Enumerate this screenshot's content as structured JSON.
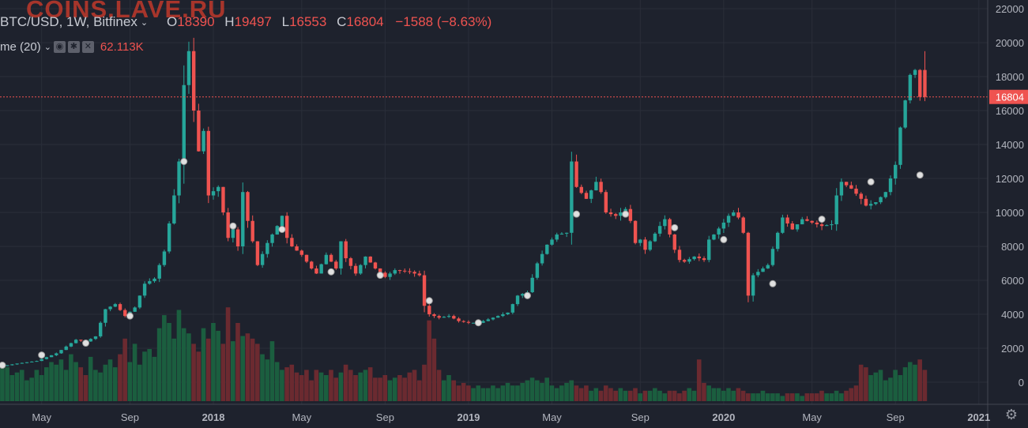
{
  "watermark": "COINS.LAVE.RU",
  "legend": {
    "symbol": "BTC/USD, 1W, Bitfinex",
    "o_label": "O",
    "o_value": "18390",
    "h_label": "H",
    "h_value": "19497",
    "l_label": "L",
    "l_value": "16553",
    "c_label": "C",
    "c_value": "16804",
    "change": "−1588 (−8.63%)"
  },
  "volume_legend": {
    "label": "me (20)",
    "value": "62.113K"
  },
  "colors": {
    "bg": "#1e222d",
    "up": "#26a69a",
    "down": "#ef5350",
    "grid": "#2a2e39",
    "text": "#b2b5be",
    "up_vol": "#1b5e3f",
    "down_vol": "#6b2a30"
  },
  "chart_data": {
    "type": "candlestick",
    "ylim": [
      -2000,
      22000
    ],
    "y_ticks": [
      "22000",
      "20000",
      "18000",
      "16000",
      "14000",
      "12000",
      "10000",
      "8000",
      "6000",
      "4000",
      "2000",
      "0"
    ],
    "x_ticks": [
      "May",
      "Sep",
      "2018",
      "May",
      "Sep",
      "2019",
      "May",
      "Sep",
      "2020",
      "May",
      "Sep",
      "2021"
    ],
    "last_price": "16804",
    "ma_points": [
      [
        0,
        1000
      ],
      [
        8,
        1600
      ],
      [
        17,
        2300
      ],
      [
        26,
        3900
      ],
      [
        37,
        13000
      ],
      [
        47,
        9200
      ],
      [
        57,
        9000
      ],
      [
        67,
        6500
      ],
      [
        77,
        6300
      ],
      [
        87,
        4800
      ],
      [
        97,
        3500
      ],
      [
        107,
        5100
      ],
      [
        117,
        9900
      ],
      [
        127,
        9900
      ],
      [
        137,
        9100
      ],
      [
        147,
        8400
      ],
      [
        157,
        5800
      ],
      [
        167,
        9600
      ],
      [
        177,
        11800
      ],
      [
        187,
        12200
      ]
    ],
    "price_path": [
      [
        0,
        900
      ],
      [
        4,
        1100
      ],
      [
        8,
        1250
      ],
      [
        12,
        1700
      ],
      [
        16,
        2500
      ],
      [
        18,
        2400
      ],
      [
        20,
        2700
      ],
      [
        22,
        4300
      ],
      [
        24,
        4600
      ],
      [
        26,
        3900
      ],
      [
        28,
        4400
      ],
      [
        30,
        5800
      ],
      [
        32,
        6100
      ],
      [
        34,
        7700
      ],
      [
        36,
        11000
      ],
      [
        37,
        13000
      ],
      [
        38,
        17500
      ],
      [
        39,
        19500
      ],
      [
        40,
        16000
      ],
      [
        41,
        13600
      ],
      [
        42,
        14800
      ],
      [
        43,
        11000
      ],
      [
        45,
        11500
      ],
      [
        46,
        10000
      ],
      [
        47,
        8500
      ],
      [
        48,
        9000
      ],
      [
        49,
        8000
      ],
      [
        50,
        11200
      ],
      [
        51,
        9500
      ],
      [
        52,
        8300
      ],
      [
        53,
        6900
      ],
      [
        55,
        8200
      ],
      [
        57,
        9200
      ],
      [
        58,
        9800
      ],
      [
        59,
        8500
      ],
      [
        60,
        8000
      ],
      [
        62,
        7500
      ],
      [
        64,
        6700
      ],
      [
        65,
        6400
      ],
      [
        67,
        7500
      ],
      [
        69,
        6700
      ],
      [
        70,
        8300
      ],
      [
        71,
        7300
      ],
      [
        73,
        6400
      ],
      [
        75,
        7400
      ],
      [
        77,
        6700
      ],
      [
        79,
        6200
      ],
      [
        81,
        6600
      ],
      [
        84,
        6500
      ],
      [
        86,
        6300
      ],
      [
        87,
        4500
      ],
      [
        88,
        4000
      ],
      [
        90,
        3800
      ],
      [
        92,
        3900
      ],
      [
        94,
        3600
      ],
      [
        96,
        3500
      ],
      [
        98,
        3500
      ],
      [
        100,
        3700
      ],
      [
        102,
        3900
      ],
      [
        104,
        4100
      ],
      [
        106,
        5100
      ],
      [
        108,
        5300
      ],
      [
        110,
        7000
      ],
      [
        112,
        8100
      ],
      [
        114,
        8700
      ],
      [
        116,
        8800
      ],
      [
        117,
        13000
      ],
      [
        118,
        11500
      ],
      [
        120,
        10800
      ],
      [
        122,
        11800
      ],
      [
        123,
        11200
      ],
      [
        124,
        10000
      ],
      [
        126,
        9800
      ],
      [
        128,
        10200
      ],
      [
        129,
        9500
      ],
      [
        130,
        8200
      ],
      [
        131,
        8400
      ],
      [
        132,
        7800
      ],
      [
        133,
        8300
      ],
      [
        135,
        9200
      ],
      [
        136,
        9600
      ],
      [
        137,
        8700
      ],
      [
        138,
        7800
      ],
      [
        139,
        7200
      ],
      [
        140,
        7100
      ],
      [
        142,
        7400
      ],
      [
        144,
        7200
      ],
      [
        145,
        8400
      ],
      [
        146,
        8700
      ],
      [
        148,
        9400
      ],
      [
        149,
        9800
      ],
      [
        150,
        10000
      ],
      [
        151,
        9700
      ],
      [
        152,
        8800
      ],
      [
        153,
        5100
      ],
      [
        154,
        6300
      ],
      [
        155,
        6500
      ],
      [
        157,
        6900
      ],
      [
        159,
        8800
      ],
      [
        160,
        9700
      ],
      [
        162,
        9000
      ],
      [
        164,
        9600
      ],
      [
        166,
        9400
      ],
      [
        168,
        9200
      ],
      [
        170,
        9300
      ],
      [
        171,
        11000
      ],
      [
        172,
        11800
      ],
      [
        173,
        11600
      ],
      [
        174,
        11400
      ],
      [
        176,
        10800
      ],
      [
        177,
        10400
      ],
      [
        179,
        10600
      ],
      [
        181,
        11200
      ],
      [
        183,
        12800
      ],
      [
        184,
        15000
      ],
      [
        185,
        16600
      ],
      [
        186,
        18100
      ],
      [
        187,
        18390
      ],
      [
        188,
        16804
      ]
    ],
    "volume_values": [
      14,
      13,
      10,
      11,
      12,
      8,
      9,
      12,
      10,
      13,
      15,
      14,
      16,
      12,
      18,
      15,
      13,
      10,
      17,
      12,
      11,
      14,
      16,
      13,
      18,
      24,
      15,
      22,
      14,
      19,
      20,
      17,
      28,
      33,
      30,
      24,
      35,
      28,
      26,
      22,
      19,
      28,
      24,
      30,
      27,
      22,
      36,
      23,
      30,
      25,
      26,
      24,
      22,
      18,
      16,
      23,
      15,
      12,
      13,
      14,
      11,
      10,
      12,
      8,
      12,
      11,
      10,
      12,
      9,
      11,
      14,
      12,
      10,
      11,
      12,
      13,
      9,
      9,
      10,
      8,
      9,
      10,
      9,
      11,
      12,
      8,
      14,
      31,
      24,
      12,
      8,
      10,
      8,
      6,
      7,
      6,
      5,
      6,
      5,
      5,
      6,
      5,
      6,
      7,
      6,
      6,
      7,
      8,
      9,
      8,
      7,
      9,
      6,
      5,
      6,
      7,
      8,
      6,
      5,
      6,
      4,
      5,
      4,
      6,
      5,
      4,
      5,
      4,
      4,
      5,
      3,
      4,
      4,
      5,
      4,
      3,
      4,
      4,
      3,
      4,
      5,
      4,
      16,
      7,
      6,
      5,
      5,
      4,
      5,
      4,
      5,
      4,
      3,
      3,
      3,
      4,
      3,
      3,
      3,
      2,
      3,
      3,
      3,
      2,
      3,
      3,
      3,
      4,
      3,
      3,
      4,
      3,
      4,
      5,
      6
    ]
  }
}
